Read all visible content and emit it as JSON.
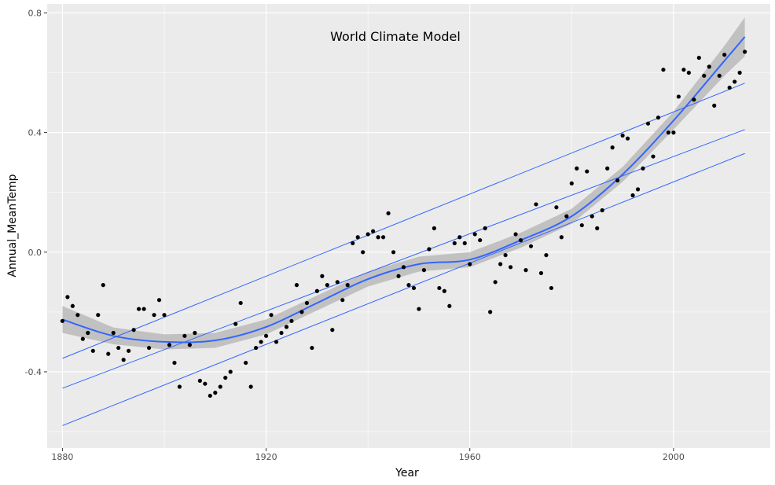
{
  "chart_data": {
    "type": "scatter",
    "title": "World Climate Model",
    "xlabel": "Year",
    "ylabel": "Annual_MeanTemp",
    "xlim": [
      1877,
      2019
    ],
    "ylim": [
      -0.655,
      0.83
    ],
    "x_ticks": [
      1880,
      1920,
      1960,
      2000
    ],
    "x_tick_labels": [
      "1880",
      "1920",
      "1960",
      "2000"
    ],
    "y_ticks": [
      -0.4,
      0.0,
      0.4,
      0.8
    ],
    "y_tick_labels": [
      "-0.4",
      "0.0",
      "0.4",
      "0.8"
    ],
    "grid": true,
    "colors": {
      "panel": "#ebebeb",
      "grid_major": "#ffffff",
      "points": "#000000",
      "smooth": "#3366ff",
      "band": "#b3b3b3"
    },
    "points": {
      "x": [
        1880,
        1881,
        1882,
        1883,
        1884,
        1885,
        1886,
        1887,
        1888,
        1889,
        1890,
        1891,
        1892,
        1893,
        1894,
        1895,
        1896,
        1897,
        1898,
        1899,
        1900,
        1901,
        1902,
        1903,
        1904,
        1905,
        1906,
        1907,
        1908,
        1909,
        1910,
        1911,
        1912,
        1913,
        1914,
        1915,
        1916,
        1917,
        1918,
        1919,
        1920,
        1921,
        1922,
        1923,
        1924,
        1925,
        1926,
        1927,
        1928,
        1929,
        1930,
        1931,
        1932,
        1933,
        1934,
        1935,
        1936,
        1937,
        1938,
        1939,
        1940,
        1941,
        1942,
        1943,
        1944,
        1945,
        1946,
        1947,
        1948,
        1949,
        1950,
        1951,
        1952,
        1953,
        1954,
        1955,
        1956,
        1957,
        1958,
        1959,
        1960,
        1961,
        1962,
        1963,
        1964,
        1965,
        1966,
        1967,
        1968,
        1969,
        1970,
        1971,
        1972,
        1973,
        1974,
        1975,
        1976,
        1977,
        1978,
        1979,
        1980,
        1981,
        1982,
        1983,
        1984,
        1985,
        1986,
        1987,
        1988,
        1989,
        1990,
        1991,
        1992,
        1993,
        1994,
        1995,
        1996,
        1997,
        1998,
        1999,
        2000,
        2001,
        2002,
        2003,
        2004,
        2005,
        2006,
        2007,
        2008,
        2009,
        2010,
        2011,
        2012,
        2013,
        2014
      ],
      "y": [
        -0.23,
        -0.15,
        -0.18,
        -0.21,
        -0.29,
        -0.27,
        -0.33,
        -0.21,
        -0.11,
        -0.34,
        -0.27,
        -0.32,
        -0.36,
        -0.33,
        -0.26,
        -0.19,
        -0.19,
        -0.32,
        -0.21,
        -0.16,
        -0.21,
        -0.31,
        -0.37,
        -0.45,
        -0.28,
        -0.31,
        -0.27,
        -0.43,
        -0.44,
        -0.48,
        -0.47,
        -0.45,
        -0.42,
        -0.4,
        -0.24,
        -0.17,
        -0.37,
        -0.45,
        -0.32,
        -0.3,
        -0.28,
        -0.21,
        -0.3,
        -0.27,
        -0.25,
        -0.23,
        -0.11,
        -0.2,
        -0.17,
        -0.32,
        -0.13,
        -0.08,
        -0.11,
        -0.26,
        -0.1,
        -0.16,
        -0.11,
        0.03,
        0.05,
        0.0,
        0.06,
        0.07,
        0.05,
        0.05,
        0.13,
        0.0,
        -0.08,
        -0.05,
        -0.11,
        -0.12,
        -0.19,
        -0.06,
        0.01,
        0.08,
        -0.12,
        -0.13,
        -0.18,
        0.03,
        0.05,
        0.03,
        -0.04,
        0.06,
        0.04,
        0.08,
        -0.2,
        -0.1,
        -0.04,
        -0.01,
        -0.05,
        0.06,
        0.04,
        -0.06,
        0.02,
        0.16,
        -0.07,
        -0.01,
        -0.12,
        0.15,
        0.05,
        0.12,
        0.23,
        0.28,
        0.09,
        0.27,
        0.12,
        0.08,
        0.14,
        0.28,
        0.35,
        0.24,
        0.39,
        0.38,
        0.19,
        0.21,
        0.28,
        0.43,
        0.32,
        0.45,
        0.61,
        0.4,
        0.4,
        0.52,
        0.61,
        0.6,
        0.51,
        0.65,
        0.59,
        0.62,
        0.49,
        0.59,
        0.66,
        0.55,
        0.57,
        0.6,
        0.67
      ]
    },
    "smooth": {
      "x": [
        1880,
        1890,
        1900,
        1910,
        1920,
        1930,
        1940,
        1950,
        1960,
        1970,
        1980,
        1990,
        2000,
        2010,
        2014
      ],
      "y": [
        -0.225,
        -0.28,
        -0.3,
        -0.295,
        -0.25,
        -0.17,
        -0.09,
        -0.04,
        -0.025,
        0.04,
        0.12,
        0.26,
        0.44,
        0.64,
        0.72
      ]
    },
    "band_halfwidth": {
      "x": [
        1880,
        1890,
        1900,
        1910,
        1920,
        1930,
        1940,
        1950,
        1960,
        1970,
        1980,
        1990,
        2000,
        2010,
        2014
      ],
      "y": [
        0.045,
        0.028,
        0.025,
        0.025,
        0.025,
        0.025,
        0.025,
        0.025,
        0.025,
        0.025,
        0.025,
        0.025,
        0.03,
        0.05,
        0.065
      ]
    },
    "lines": [
      {
        "x": [
          1880,
          2014
        ],
        "y": [
          -0.355,
          0.565
        ]
      },
      {
        "x": [
          1880,
          2014
        ],
        "y": [
          -0.455,
          0.41
        ]
      },
      {
        "x": [
          1880,
          2014
        ],
        "y": [
          -0.58,
          0.33
        ]
      }
    ]
  }
}
